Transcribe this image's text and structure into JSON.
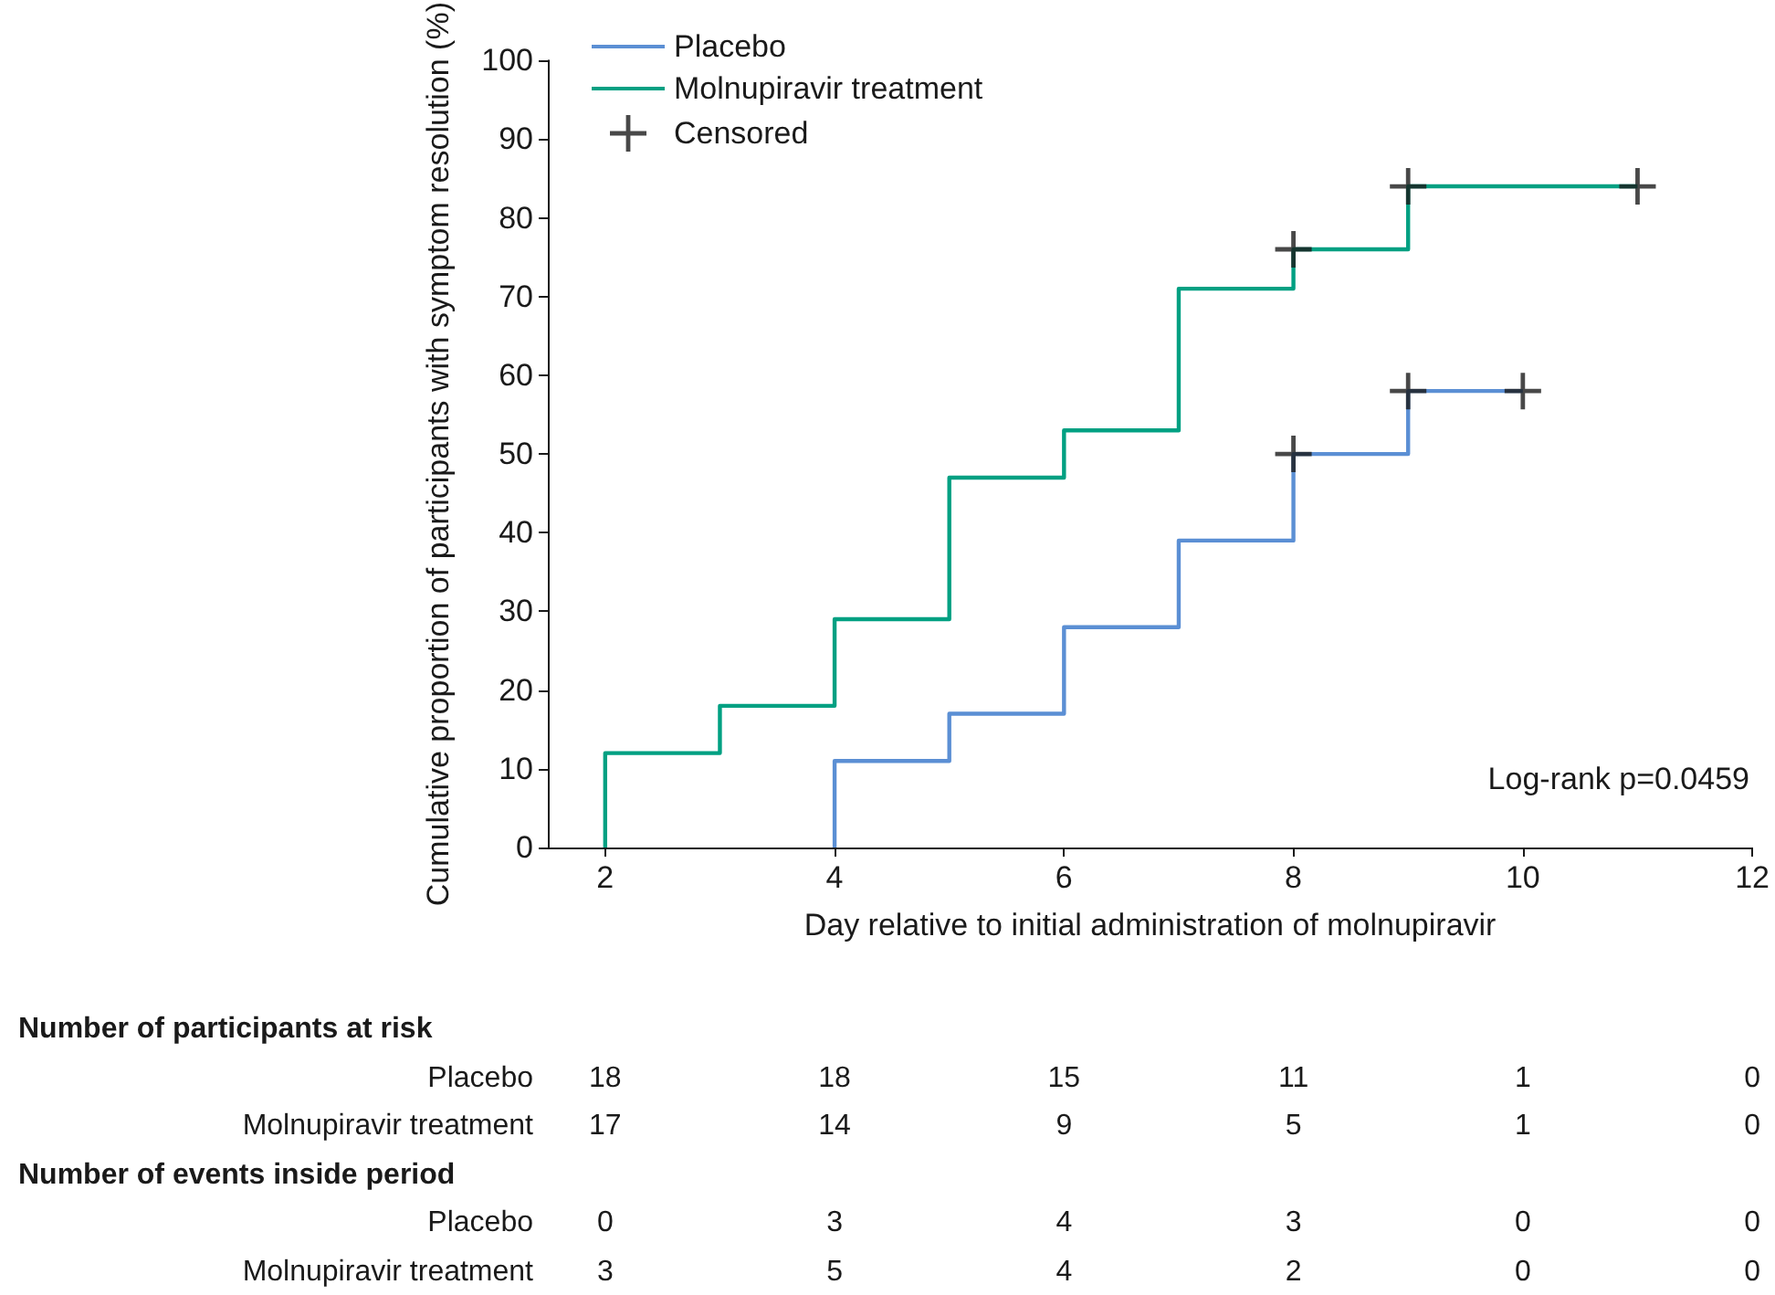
{
  "chart_data": {
    "type": "step",
    "xlabel": "Day relative to initial administration of molnupiravir",
    "ylabel": "Cumulative proportion of participants with symptom resolution (%)",
    "xlim": [
      1.5,
      12
    ],
    "xticks": [
      2,
      4,
      6,
      8,
      10,
      12
    ],
    "ylim": [
      0,
      100
    ],
    "yticks": [
      0,
      10,
      20,
      30,
      40,
      50,
      60,
      70,
      80,
      90,
      100
    ],
    "grid": false,
    "legend": "top left",
    "line_style": "solid",
    "series": [
      {
        "name": "Placebo",
        "color": "#5b8fd4",
        "x": [
          4,
          4,
          5,
          6,
          7,
          8,
          9,
          10
        ],
        "values": [
          0,
          11,
          17,
          28,
          39,
          50,
          58,
          58
        ]
      },
      {
        "name": "Molnupiravir treatment",
        "color": "#00a082",
        "x": [
          2,
          2,
          3,
          4,
          5,
          6,
          7,
          8,
          9,
          11
        ],
        "values": [
          0,
          12,
          18,
          29,
          47,
          53,
          71,
          76,
          84,
          84
        ]
      },
      {
        "name": "Censored",
        "type": "scatter",
        "marker": "cross",
        "color": "#1a1a1a",
        "x": [
          8,
          9,
          10,
          8,
          9,
          11
        ],
        "values": [
          50,
          58,
          58,
          76,
          84,
          84
        ]
      }
    ],
    "annotations": [
      "Log-rank p=0.0459",
      "Number of participants at risk",
      "Placebo",
      "18",
      "18",
      "15",
      "11",
      "1",
      "0",
      "Molnupiravir treatment",
      "17",
      "14",
      "9",
      "5",
      "1",
      "0",
      "Number of events inside period",
      "Placebo",
      "0",
      "3",
      "4",
      "3",
      "0",
      "0",
      "Molnupiravir treatment",
      "3",
      "5",
      "4",
      "2",
      "0",
      "0"
    ]
  }
}
